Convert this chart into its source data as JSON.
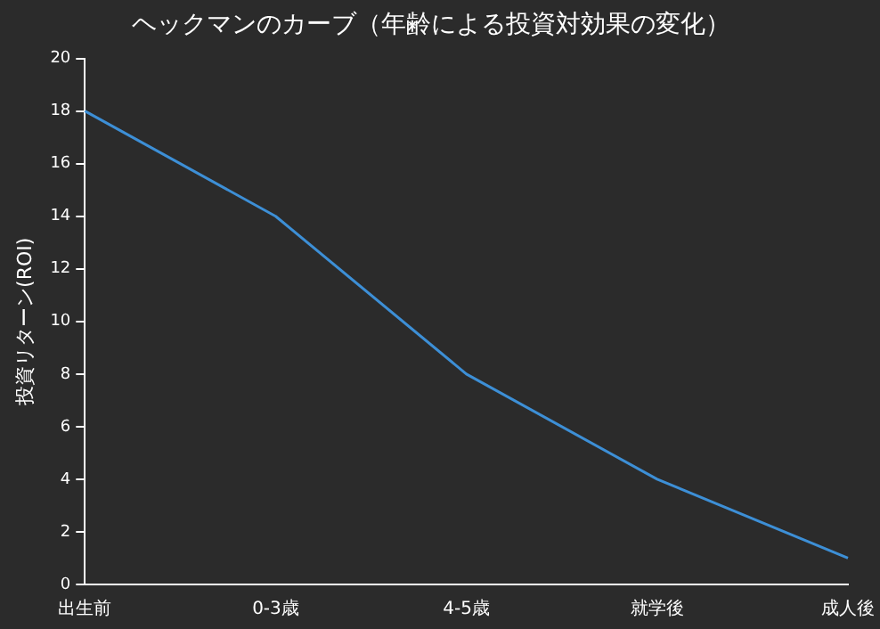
{
  "chart_data": {
    "type": "line",
    "title": "ヘックマンのカーブ（年齢による投資対効果の変化）",
    "ylabel": "投資リターン(ROI)",
    "categories": [
      "出生前",
      "0-3歳",
      "4-5歳",
      "就学後",
      "成人後"
    ],
    "series": [
      {
        "color": "#3d8fd6",
        "values": [
          18,
          14,
          8,
          4,
          1
        ]
      }
    ],
    "ylim": [
      0,
      20
    ],
    "yticks": [
      0,
      2,
      4,
      6,
      8,
      10,
      12,
      14,
      16,
      18,
      20
    ],
    "grid": false,
    "legend": false,
    "marker": "none",
    "line_style": "solid"
  }
}
